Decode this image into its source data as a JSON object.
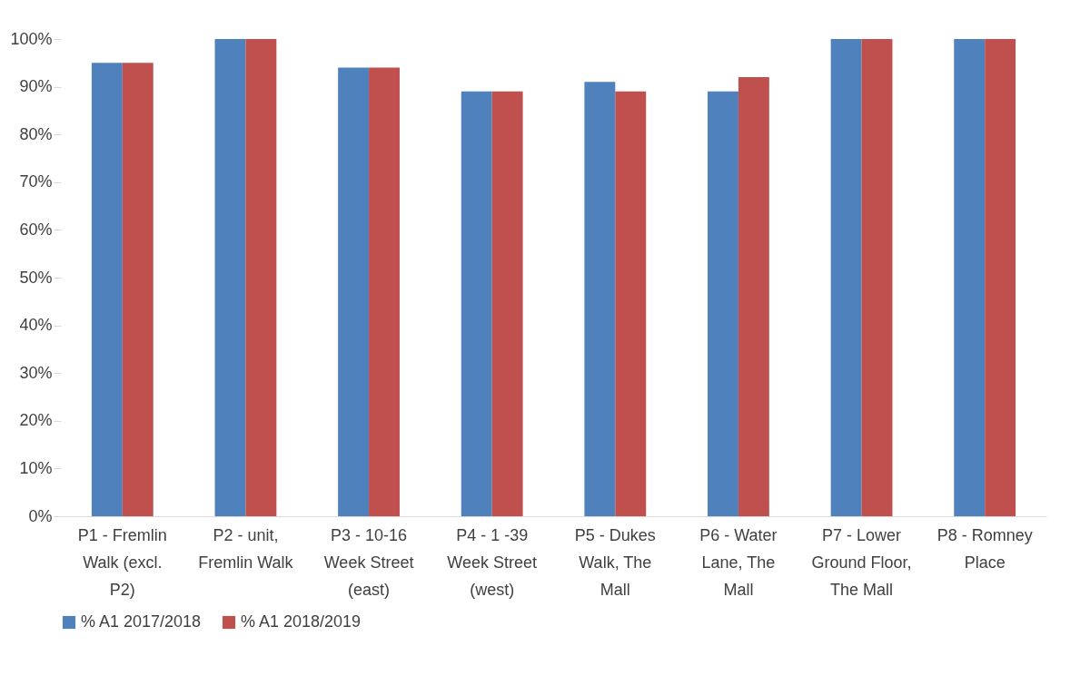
{
  "chart_data": {
    "type": "bar",
    "categories": [
      "P1 - Fremlin Walk (excl. P2)",
      "P2 - unit, Fremlin Walk",
      "P3 - 10-16 Week Street (east)",
      "P4 - 1 -39 Week Street (west)",
      "P5 - Dukes Walk, The Mall",
      "P6 - Water Lane, The Mall",
      "P7 - Lower Ground Floor, The Mall",
      "P8 - Romney Place"
    ],
    "series": [
      {
        "name": "% A1 2017/2018",
        "color": "#4f81bd",
        "values": [
          95,
          100,
          94,
          89,
          91,
          89,
          100,
          100
        ]
      },
      {
        "name": "% A1 2018/2019",
        "color": "#c0504d",
        "values": [
          95,
          100,
          94,
          89,
          89,
          92,
          100,
          100
        ]
      }
    ],
    "ylim": [
      0,
      100
    ],
    "yticks": [
      {
        "value": 0,
        "label": "0%"
      },
      {
        "value": 10,
        "label": "10%"
      },
      {
        "value": 20,
        "label": "20%"
      },
      {
        "value": 30,
        "label": "30%"
      },
      {
        "value": 40,
        "label": "40%"
      },
      {
        "value": 50,
        "label": "50%"
      },
      {
        "value": 60,
        "label": "60%"
      },
      {
        "value": 70,
        "label": "70%"
      },
      {
        "value": 80,
        "label": "80%"
      },
      {
        "value": 90,
        "label": "90%"
      },
      {
        "value": 100,
        "label": "100%"
      }
    ],
    "grid": false,
    "legend": "bottom"
  }
}
